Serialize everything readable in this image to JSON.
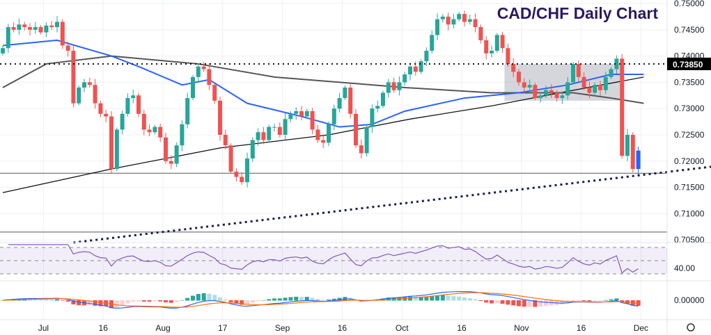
{
  "chart_data": {
    "type": "candlestick",
    "title": "CAD/CHF Daily Chart",
    "ylim": [
      0.7045,
      0.7505
    ],
    "y_ticks": [
      "0.75000",
      "0.74500",
      "0.74000",
      "0.73500",
      "0.73000",
      "0.72500",
      "0.72000",
      "0.71500",
      "0.71000",
      "0.70500"
    ],
    "y_tick_values": [
      0.75,
      0.745,
      0.74,
      0.735,
      0.73,
      0.725,
      0.72,
      0.715,
      0.71,
      0.705
    ],
    "price_label": "0.73850",
    "price_label_value": 0.7385,
    "x_labels": [
      {
        "label": "Jul",
        "bar": 8
      },
      {
        "label": "16",
        "bar": 19
      },
      {
        "label": "Aug",
        "bar": 30
      },
      {
        "label": "17",
        "bar": 41
      },
      {
        "label": "Sep",
        "bar": 52
      },
      {
        "label": "16",
        "bar": 63
      },
      {
        "label": "Oct",
        "bar": 74
      },
      {
        "label": "16",
        "bar": 85
      },
      {
        "label": "Nov",
        "bar": 96
      },
      {
        "label": "16",
        "bar": 107
      },
      {
        "label": "Dec",
        "bar": 118
      }
    ],
    "open_first": 0.7405,
    "closes": [
      0.7415,
      0.7455,
      0.745,
      0.746,
      0.7455,
      0.745,
      0.7455,
      0.7445,
      0.7458,
      0.7455,
      0.7465,
      0.742,
      0.741,
      0.731,
      0.734,
      0.735,
      0.7345,
      0.731,
      0.729,
      0.7285,
      0.7185,
      0.726,
      0.729,
      0.732,
      0.7325,
      0.729,
      0.726,
      0.7255,
      0.7265,
      0.7245,
      0.72,
      0.7195,
      0.723,
      0.727,
      0.732,
      0.736,
      0.738,
      0.7375,
      0.7345,
      0.7315,
      0.725,
      0.723,
      0.718,
      0.717,
      0.716,
      0.7205,
      0.724,
      0.7255,
      0.724,
      0.7265,
      0.7265,
      0.725,
      0.728,
      0.729,
      0.7295,
      0.7285,
      0.7295,
      0.726,
      0.724,
      0.7235,
      0.727,
      0.73,
      0.732,
      0.734,
      0.729,
      0.723,
      0.7215,
      0.7265,
      0.73,
      0.7305,
      0.733,
      0.735,
      0.7335,
      0.735,
      0.7365,
      0.738,
      0.737,
      0.739,
      0.741,
      0.744,
      0.747,
      0.7475,
      0.746,
      0.747,
      0.748,
      0.7465,
      0.747,
      0.7455,
      0.743,
      0.7405,
      0.741,
      0.744,
      0.7415,
      0.7385,
      0.737,
      0.735,
      0.734,
      0.7345,
      0.732,
      0.7325,
      0.7335,
      0.733,
      0.732,
      0.7325,
      0.735,
      0.7385,
      0.736,
      0.734,
      0.733,
      0.7345,
      0.7335,
      0.736,
      0.7375,
      0.7395,
      0.721,
      0.725,
      0.7185,
      0.722
    ],
    "ma_blue": [
      [
        0,
        0.742
      ],
      [
        10,
        0.743
      ],
      [
        20,
        0.74
      ],
      [
        25,
        0.738
      ],
      [
        33,
        0.7345
      ],
      [
        38,
        0.7355
      ],
      [
        45,
        0.731
      ],
      [
        55,
        0.7285
      ],
      [
        62,
        0.7265
      ],
      [
        68,
        0.727
      ],
      [
        74,
        0.7295
      ],
      [
        85,
        0.732
      ],
      [
        95,
        0.733
      ],
      [
        104,
        0.7345
      ],
      [
        112,
        0.7365
      ],
      [
        118,
        0.7365
      ]
    ],
    "ma_gray": [
      [
        0,
        0.734
      ],
      [
        8,
        0.7385
      ],
      [
        20,
        0.74
      ],
      [
        36,
        0.7385
      ],
      [
        50,
        0.736
      ],
      [
        62,
        0.735
      ],
      [
        74,
        0.734
      ],
      [
        90,
        0.733
      ],
      [
        105,
        0.733
      ],
      [
        112,
        0.732
      ],
      [
        118,
        0.731
      ]
    ],
    "ma_black": [
      [
        0,
        0.714
      ],
      [
        20,
        0.7185
      ],
      [
        40,
        0.7225
      ],
      [
        60,
        0.725
      ],
      [
        75,
        0.728
      ],
      [
        90,
        0.7305
      ],
      [
        100,
        0.7325
      ],
      [
        118,
        0.736
      ]
    ],
    "resistance": 0.7385,
    "support_lines": [
      0.7177,
      0.7065
    ],
    "trendline": [
      [
        13,
        0.7045
      ],
      [
        131,
        0.719
      ]
    ],
    "range_box": {
      "from_bar": 93,
      "to_bar": 114,
      "low": 0.7315,
      "high": 0.7385
    },
    "rsi_label": "40.00",
    "macd_label": "0.00000"
  },
  "colors": {
    "up": "#26a69a",
    "down": "#ef5350",
    "blue": "#2962ff",
    "gray": "#555",
    "black": "#111"
  }
}
